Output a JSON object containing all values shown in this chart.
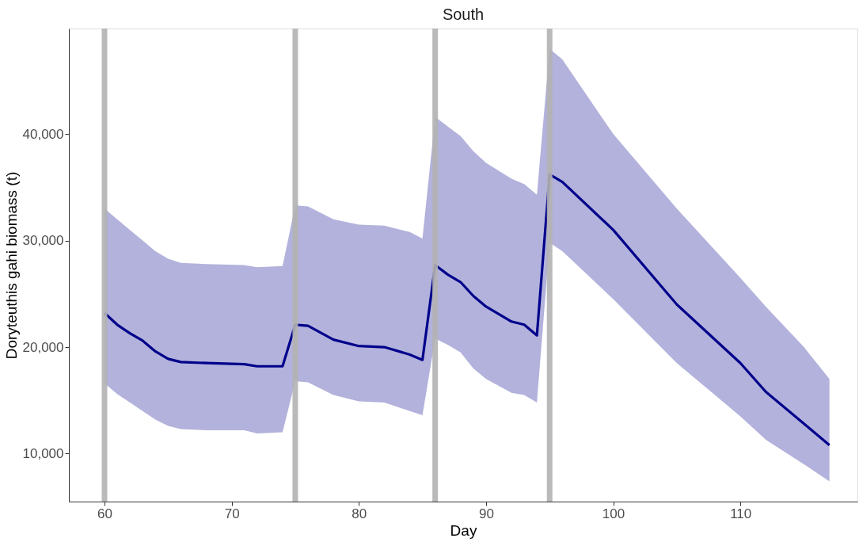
{
  "chart_data": {
    "type": "line",
    "title": "South",
    "xlabel": "Day",
    "ylabel": "Doryteuthis gahi biomass (t)",
    "x": [
      60,
      61,
      62,
      63,
      64,
      65,
      66,
      68,
      71,
      72,
      74,
      75,
      76,
      78,
      80,
      82,
      84,
      85,
      86,
      87,
      88,
      89,
      90,
      92,
      93,
      94,
      95,
      96,
      100,
      105,
      110,
      112,
      115,
      117
    ],
    "series": [
      {
        "color": "#00008b",
        "values": [
          23200,
          22100,
          21300,
          20600,
          19600,
          18900,
          18600,
          18500,
          18400,
          18200,
          18200,
          22100,
          22000,
          20700,
          20100,
          20000,
          19300,
          18800,
          27700,
          26800,
          26100,
          24800,
          23800,
          22400,
          22100,
          21100,
          36200,
          35500,
          31000,
          24000,
          18500,
          15800,
          12800,
          10800
        ],
        "upper": [
          33000,
          32000,
          31000,
          30000,
          29000,
          28300,
          27900,
          27800,
          27700,
          27500,
          27600,
          33300,
          33200,
          32000,
          31500,
          31400,
          30800,
          30200,
          41600,
          40700,
          39800,
          38400,
          37300,
          35800,
          35300,
          34300,
          48000,
          47000,
          40000,
          33000,
          26500,
          23800,
          20000,
          17000
        ],
        "lower": [
          16600,
          15600,
          14800,
          14000,
          13200,
          12600,
          12300,
          12200,
          12200,
          11900,
          12000,
          16800,
          16700,
          15500,
          14900,
          14800,
          14000,
          13600,
          20800,
          20200,
          19500,
          18000,
          17000,
          15700,
          15500,
          14800,
          29800,
          29000,
          24500,
          18500,
          13500,
          11300,
          9000,
          7400
        ]
      }
    ],
    "xlim": [
      57.2,
      119.2
    ],
    "xticks": [
      60,
      70,
      80,
      90,
      100,
      110
    ],
    "ylim": [
      5500,
      49900
    ],
    "yticks": [
      {
        "value": 10000,
        "label": "10,000"
      },
      {
        "value": 20000,
        "label": "20,000"
      },
      {
        "value": 30000,
        "label": "30,000"
      },
      {
        "value": 40000,
        "label": "40,000"
      }
    ],
    "ref_lines": [
      {
        "axis": "x",
        "value": 60,
        "color": "#b3b3b3"
      },
      {
        "axis": "x",
        "value": 75,
        "color": "#b3b3b3"
      },
      {
        "axis": "x",
        "value": 86,
        "color": "#b3b3b3"
      },
      {
        "axis": "x",
        "value": 95,
        "color": "#b3b3b3"
      }
    ],
    "marker": "none",
    "line_style": "solid"
  }
}
